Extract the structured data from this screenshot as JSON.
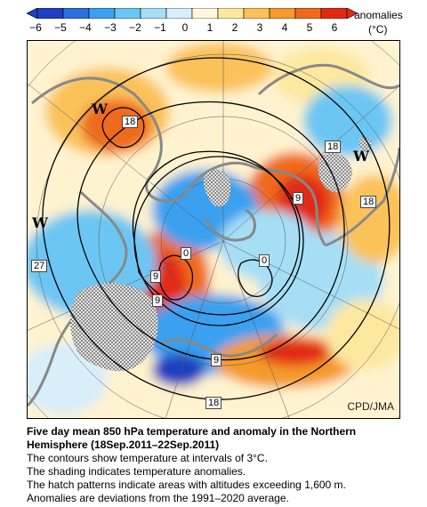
{
  "legend": {
    "ticks": [
      "−6",
      "−5",
      "−4",
      "−3",
      "−2",
      "−1",
      "0",
      "1",
      "2",
      "3",
      "4",
      "5",
      "6"
    ],
    "units_line1": "anomalies",
    "units_line2": "(°C)",
    "colors": [
      "#1f3fbf",
      "#2c6fe0",
      "#3ba0ef",
      "#6cc6f3",
      "#a6def6",
      "#d8eef9",
      "#fff7db",
      "#fde8a0",
      "#fbc25a",
      "#f59a2c",
      "#ef6a1e",
      "#e22a12"
    ]
  },
  "map": {
    "credit": "CPD/JMA",
    "contour_labels": [
      "18",
      "18",
      "18",
      "27",
      "0",
      "9",
      "9",
      "9",
      "0",
      "9",
      "18"
    ],
    "warm_marks": [
      "W",
      "W",
      "W"
    ]
  },
  "caption": {
    "title": "Five day mean 850 hPa temperature and anomaly in the Northern Hemisphere (18Sep.2011–22Sep.2011)",
    "line1": "The contours show temperature at intervals of 3°C.",
    "line2": "The shading indicates temperature anomalies.",
    "line3": "The hatch patterns indicate areas with altitudes exceeding 1,600 m.",
    "line4": "Anomalies are deviations from the 1991–2020 average."
  }
}
